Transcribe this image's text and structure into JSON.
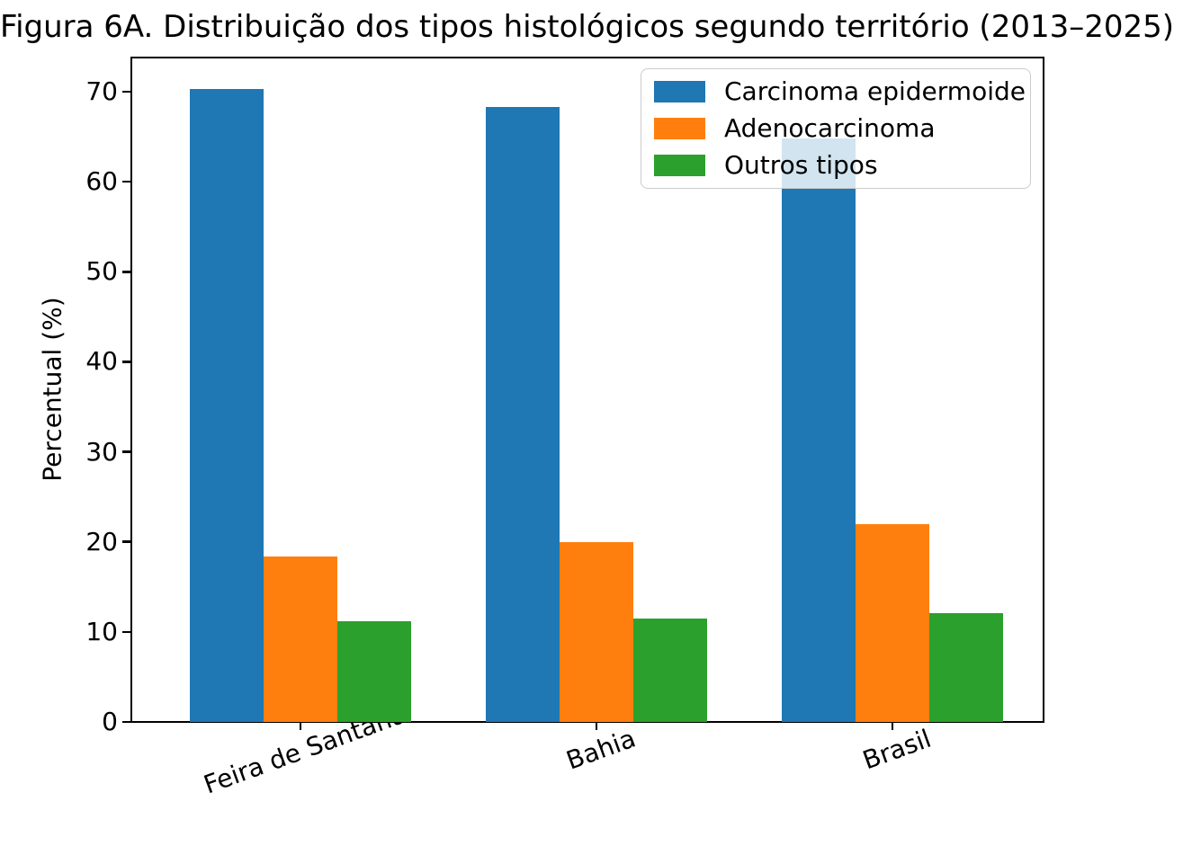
{
  "figure_title": "Figura 6A. Distribuição dos tipos histológicos segundo território (2013–2025)",
  "chart_data": {
    "type": "bar",
    "title": "Figura 6A. Distribuição dos tipos histológicos segundo território (2013–2025)",
    "categories": [
      "Feira de Santana",
      "Bahia",
      "Brasil"
    ],
    "series": [
      {
        "name": "Carcinoma epidermoide",
        "color": "#1f77b4",
        "values": [
          70.3,
          68.3,
          64.8
        ]
      },
      {
        "name": "Adenocarcinoma",
        "color": "#ff7f0e",
        "values": [
          18.4,
          20.0,
          22.0
        ]
      },
      {
        "name": "Outros tipos",
        "color": "#2ca02c",
        "values": [
          11.2,
          11.5,
          12.1
        ]
      }
    ],
    "xlabel": "",
    "ylabel": "Percentual (%)",
    "yticks": [
      0,
      10,
      20,
      30,
      40,
      50,
      60,
      70
    ],
    "ylim": [
      0,
      73.9
    ],
    "grid": false,
    "legend_position": "upper right",
    "bar_width_fraction": 0.25,
    "xtick_rotation_deg": 20
  }
}
